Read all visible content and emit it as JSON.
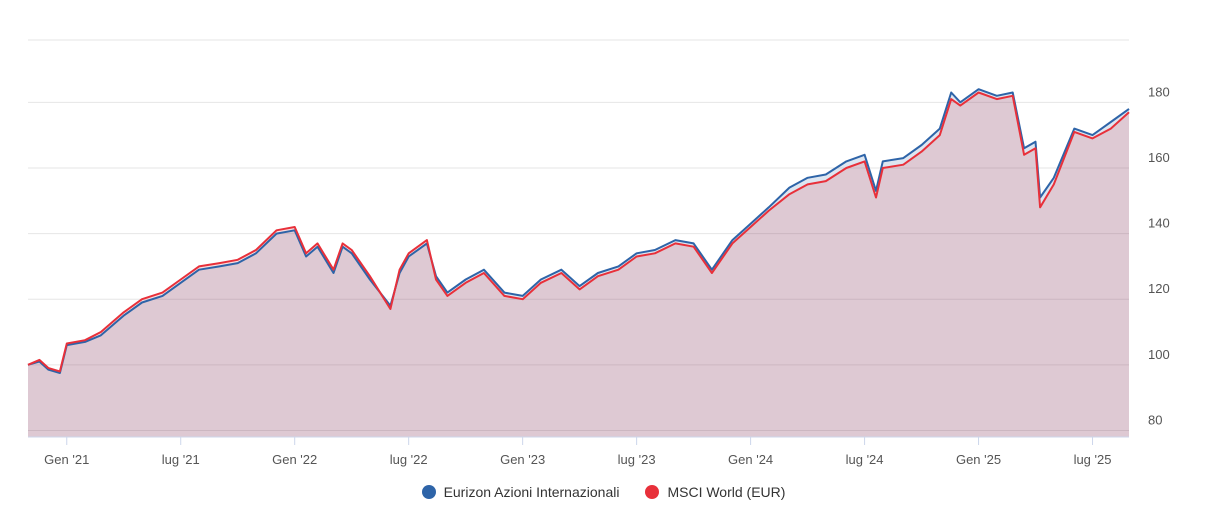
{
  "chart_data": {
    "type": "area",
    "title": "",
    "xlabel": "",
    "ylabel": "",
    "ylim": [
      78,
      199
    ],
    "y_ticks": [
      80,
      100,
      120,
      140,
      160,
      180
    ],
    "y_tick_labels": [
      "80",
      "100",
      "120",
      "140",
      "160",
      "180"
    ],
    "x_range": [
      2020.83,
      2025.66
    ],
    "x_ticks": [
      2021.0,
      2021.5,
      2022.0,
      2022.5,
      2023.0,
      2023.5,
      2024.0,
      2024.5,
      2025.0,
      2025.5
    ],
    "x_tick_labels": [
      "Gen '21",
      "lug '21",
      "Gen '22",
      "lug '22",
      "Gen '23",
      "lug '23",
      "Gen '24",
      "lug '24",
      "Gen '25",
      "lug '25"
    ],
    "legend_position": "bottom-center",
    "series": [
      {
        "name": "Eurizon Azioni Internazionali",
        "color": "#2e64a8",
        "x": [
          2020.83,
          2020.88,
          2020.92,
          2020.97,
          2021.0,
          2021.08,
          2021.15,
          2021.25,
          2021.33,
          2021.42,
          2021.5,
          2021.58,
          2021.67,
          2021.75,
          2021.83,
          2021.92,
          2022.0,
          2022.05,
          2022.1,
          2022.17,
          2022.21,
          2022.25,
          2022.33,
          2022.42,
          2022.46,
          2022.5,
          2022.58,
          2022.62,
          2022.67,
          2022.75,
          2022.83,
          2022.92,
          2023.0,
          2023.08,
          2023.17,
          2023.25,
          2023.33,
          2023.42,
          2023.5,
          2023.58,
          2023.67,
          2023.75,
          2023.83,
          2023.92,
          2024.0,
          2024.08,
          2024.17,
          2024.25,
          2024.33,
          2024.42,
          2024.5,
          2024.55,
          2024.58,
          2024.67,
          2024.75,
          2024.83,
          2024.88,
          2024.92,
          2025.0,
          2025.08,
          2025.15,
          2025.2,
          2025.25,
          2025.27,
          2025.33,
          2025.42,
          2025.5,
          2025.58,
          2025.66
        ],
        "values": [
          100,
          101,
          98.5,
          97.5,
          106,
          107,
          109,
          115,
          119,
          121,
          125,
          129,
          130,
          131,
          134,
          140,
          141,
          133,
          136,
          128,
          136,
          134,
          126,
          118,
          128,
          133,
          137,
          127,
          122,
          126,
          129,
          122,
          121,
          126,
          129,
          124,
          128,
          130,
          134,
          135,
          138,
          137,
          129,
          138,
          143,
          148,
          154,
          157,
          158,
          162,
          164,
          153,
          162,
          163,
          167,
          172,
          183,
          180,
          184,
          182,
          183,
          166,
          168,
          151,
          157,
          172,
          170,
          174,
          178
        ]
      },
      {
        "name": "MSCI World (EUR)",
        "color": "#e8303a",
        "x": [
          2020.83,
          2020.88,
          2020.92,
          2020.97,
          2021.0,
          2021.08,
          2021.15,
          2021.25,
          2021.33,
          2021.42,
          2021.5,
          2021.58,
          2021.67,
          2021.75,
          2021.83,
          2021.92,
          2022.0,
          2022.05,
          2022.1,
          2022.17,
          2022.21,
          2022.25,
          2022.33,
          2022.42,
          2022.46,
          2022.5,
          2022.58,
          2022.62,
          2022.67,
          2022.75,
          2022.83,
          2022.92,
          2023.0,
          2023.08,
          2023.17,
          2023.25,
          2023.33,
          2023.42,
          2023.5,
          2023.58,
          2023.67,
          2023.75,
          2023.83,
          2023.92,
          2024.0,
          2024.08,
          2024.17,
          2024.25,
          2024.33,
          2024.42,
          2024.5,
          2024.55,
          2024.58,
          2024.67,
          2024.75,
          2024.83,
          2024.88,
          2024.92,
          2025.0,
          2025.08,
          2025.15,
          2025.2,
          2025.25,
          2025.27,
          2025.33,
          2025.42,
          2025.5,
          2025.58,
          2025.66
        ],
        "values": [
          100,
          101.5,
          99,
          98,
          106.5,
          107.5,
          110,
          116,
          120,
          122,
          126,
          130,
          131,
          132,
          135,
          141,
          142,
          134,
          137,
          129,
          137,
          135,
          127,
          117,
          129,
          134,
          138,
          126,
          121,
          125,
          128,
          121,
          120,
          125,
          128,
          123,
          127,
          129,
          133,
          134,
          137,
          136,
          128,
          137,
          142,
          147,
          152,
          155,
          156,
          160,
          162,
          151,
          160,
          161,
          165,
          170,
          181,
          179,
          183,
          181,
          182,
          164,
          166,
          148,
          155,
          171,
          169,
          172,
          177
        ]
      }
    ]
  }
}
